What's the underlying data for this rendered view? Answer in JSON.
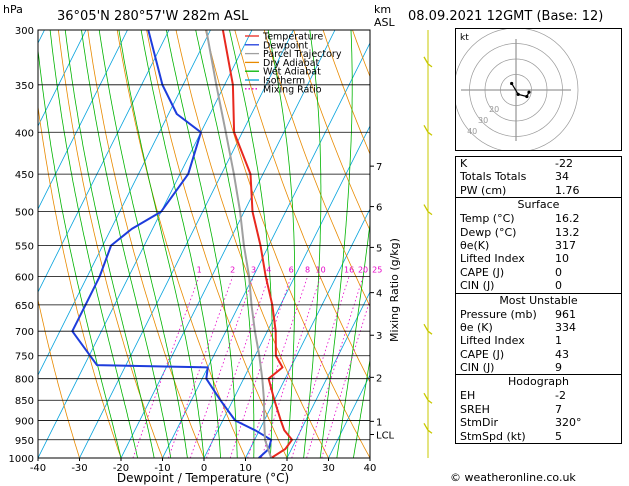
{
  "header": {
    "pressure_unit": "hPa",
    "location": "36°05'N  280°57'W  282m  ASL",
    "height_unit_line1": "km",
    "height_unit_line2": "ASL",
    "datetime": "08.09.2021  12GMT  (Base: 12)"
  },
  "chart_data": {
    "type": "line",
    "xlabel": "Dewpoint / Temperature (°C)",
    "ylabel_right": "Mixing Ratio (g/kg)",
    "xlim": [
      -40,
      40
    ],
    "ylim": [
      1000,
      300
    ],
    "y_scale": "log",
    "skew": "skewed",
    "x_ticks": [
      -40,
      -30,
      -20,
      -10,
      0,
      10,
      20,
      30,
      40
    ],
    "pressure_ticks": [
      300,
      350,
      400,
      450,
      500,
      550,
      600,
      650,
      700,
      750,
      800,
      850,
      900,
      950,
      1000
    ],
    "km_ticks": [
      {
        "label": "7",
        "p": 440
      },
      {
        "label": "6",
        "p": 493
      },
      {
        "label": "5",
        "p": 553
      },
      {
        "label": "4",
        "p": 628
      },
      {
        "label": "3",
        "p": 708
      },
      {
        "label": "2",
        "p": 797
      },
      {
        "label": "1",
        "p": 902
      },
      {
        "label": "LCL",
        "p": 936
      }
    ],
    "mixing_ratio_labels": [
      "1",
      "2",
      "3",
      "4",
      "6",
      "8",
      "10",
      "16",
      "20",
      "25"
    ],
    "mixing_ratio_values": [
      1,
      2,
      3,
      4,
      6,
      8,
      10,
      16,
      20,
      25
    ],
    "legend": [
      {
        "name": "Temperature",
        "color": "#e8281e",
        "style": "solid"
      },
      {
        "name": "Dewpoint",
        "color": "#1e3cdc",
        "style": "solid"
      },
      {
        "name": "Parcel Trajectory",
        "color": "#a0a0a0",
        "style": "solid"
      },
      {
        "name": "Dry Adiabat",
        "color": "#e88a00",
        "style": "solid"
      },
      {
        "name": "Wet Adiabat",
        "color": "#00b400",
        "style": "solid"
      },
      {
        "name": "Isotherm",
        "color": "#00a0dc",
        "style": "solid"
      },
      {
        "name": "Mixing Ratio",
        "color": "#e600c8",
        "style": "dotted"
      }
    ],
    "series": [
      {
        "name": "Temperature",
        "points": [
          [
            1000,
            16.2
          ],
          [
            975,
            18.5
          ],
          [
            950,
            19
          ],
          [
            925,
            16
          ],
          [
            900,
            14
          ],
          [
            850,
            10
          ],
          [
            800,
            6
          ],
          [
            775,
            8
          ],
          [
            750,
            5
          ],
          [
            700,
            2
          ],
          [
            650,
            -2
          ],
          [
            600,
            -7
          ],
          [
            550,
            -12
          ],
          [
            500,
            -18
          ],
          [
            450,
            -23
          ],
          [
            400,
            -32
          ],
          [
            350,
            -38
          ],
          [
            300,
            -47
          ]
        ]
      },
      {
        "name": "Dewpoint",
        "points": [
          [
            1000,
            13.2
          ],
          [
            975,
            14.5
          ],
          [
            950,
            14
          ],
          [
            925,
            9
          ],
          [
            900,
            3
          ],
          [
            850,
            -3
          ],
          [
            800,
            -9
          ],
          [
            775,
            -10
          ],
          [
            770,
            -37
          ],
          [
            700,
            -47
          ],
          [
            650,
            -47
          ],
          [
            600,
            -47
          ],
          [
            550,
            -48
          ],
          [
            525,
            -45
          ],
          [
            500,
            -40
          ],
          [
            450,
            -38
          ],
          [
            400,
            -40
          ],
          [
            380,
            -48
          ],
          [
            350,
            -55
          ],
          [
            300,
            -65
          ]
        ]
      },
      {
        "name": "Parcel Trajectory",
        "points": [
          [
            1000,
            16.2
          ],
          [
            950,
            12.5
          ],
          [
            900,
            10
          ],
          [
            850,
            7.5
          ],
          [
            800,
            4.5
          ],
          [
            750,
            1
          ],
          [
            700,
            -3
          ],
          [
            650,
            -7
          ],
          [
            600,
            -11
          ],
          [
            550,
            -16
          ],
          [
            500,
            -21
          ],
          [
            450,
            -27
          ],
          [
            400,
            -34
          ],
          [
            350,
            -42
          ],
          [
            300,
            -51
          ]
        ]
      }
    ]
  },
  "hodograph": {
    "unit_label": "kt",
    "ring_labels": [
      "20",
      "30",
      "40"
    ],
    "ring_speeds": [
      10,
      20,
      30,
      40
    ],
    "points_kt": [
      [
        -2,
        3
      ],
      [
        1,
        -2
      ],
      [
        5,
        -3
      ],
      [
        6,
        -1
      ]
    ]
  },
  "indices": {
    "top_rows": [
      {
        "label": "K",
        "value": "-22"
      },
      {
        "label": "Totals Totals",
        "value": "34"
      },
      {
        "label": "PW (cm)",
        "value": "1.76"
      }
    ],
    "surface_title": "Surface",
    "surface_rows": [
      {
        "label": "Temp (°C)",
        "value": "16.2"
      },
      {
        "label": "Dewp (°C)",
        "value": "13.2"
      },
      {
        "label": "θe(K)",
        "value": "317"
      },
      {
        "label": "Lifted Index",
        "value": "10"
      },
      {
        "label": "CAPE (J)",
        "value": "0"
      },
      {
        "label": "CIN (J)",
        "value": "0"
      }
    ],
    "unstable_title": "Most Unstable",
    "unstable_rows": [
      {
        "label": "Pressure (mb)",
        "value": "961"
      },
      {
        "label": "θe (K)",
        "value": "334"
      },
      {
        "label": "Lifted Index",
        "value": "1"
      },
      {
        "label": "CAPE (J)",
        "value": "43"
      },
      {
        "label": "CIN (J)",
        "value": "9"
      }
    ],
    "hodograph_title": "Hodograph",
    "hodograph_rows": [
      {
        "label": "EH",
        "value": "-2"
      },
      {
        "label": "SREH",
        "value": "7"
      },
      {
        "label": "StmDir",
        "value": "320°"
      },
      {
        "label": "StmSpd (kt)",
        "value": "5"
      }
    ]
  },
  "footer": {
    "copyright": "© weatheronline.co.uk"
  },
  "colors": {
    "temperature": "#e8281e",
    "dewpoint": "#1e3cdc",
    "parcel": "#a0a0a0",
    "dry_adiabat": "#e88a00",
    "wet_adiabat": "#00b400",
    "isotherm": "#00a0dc",
    "mixing_ratio": "#e600c8",
    "wind_barb": "#c8c800"
  }
}
